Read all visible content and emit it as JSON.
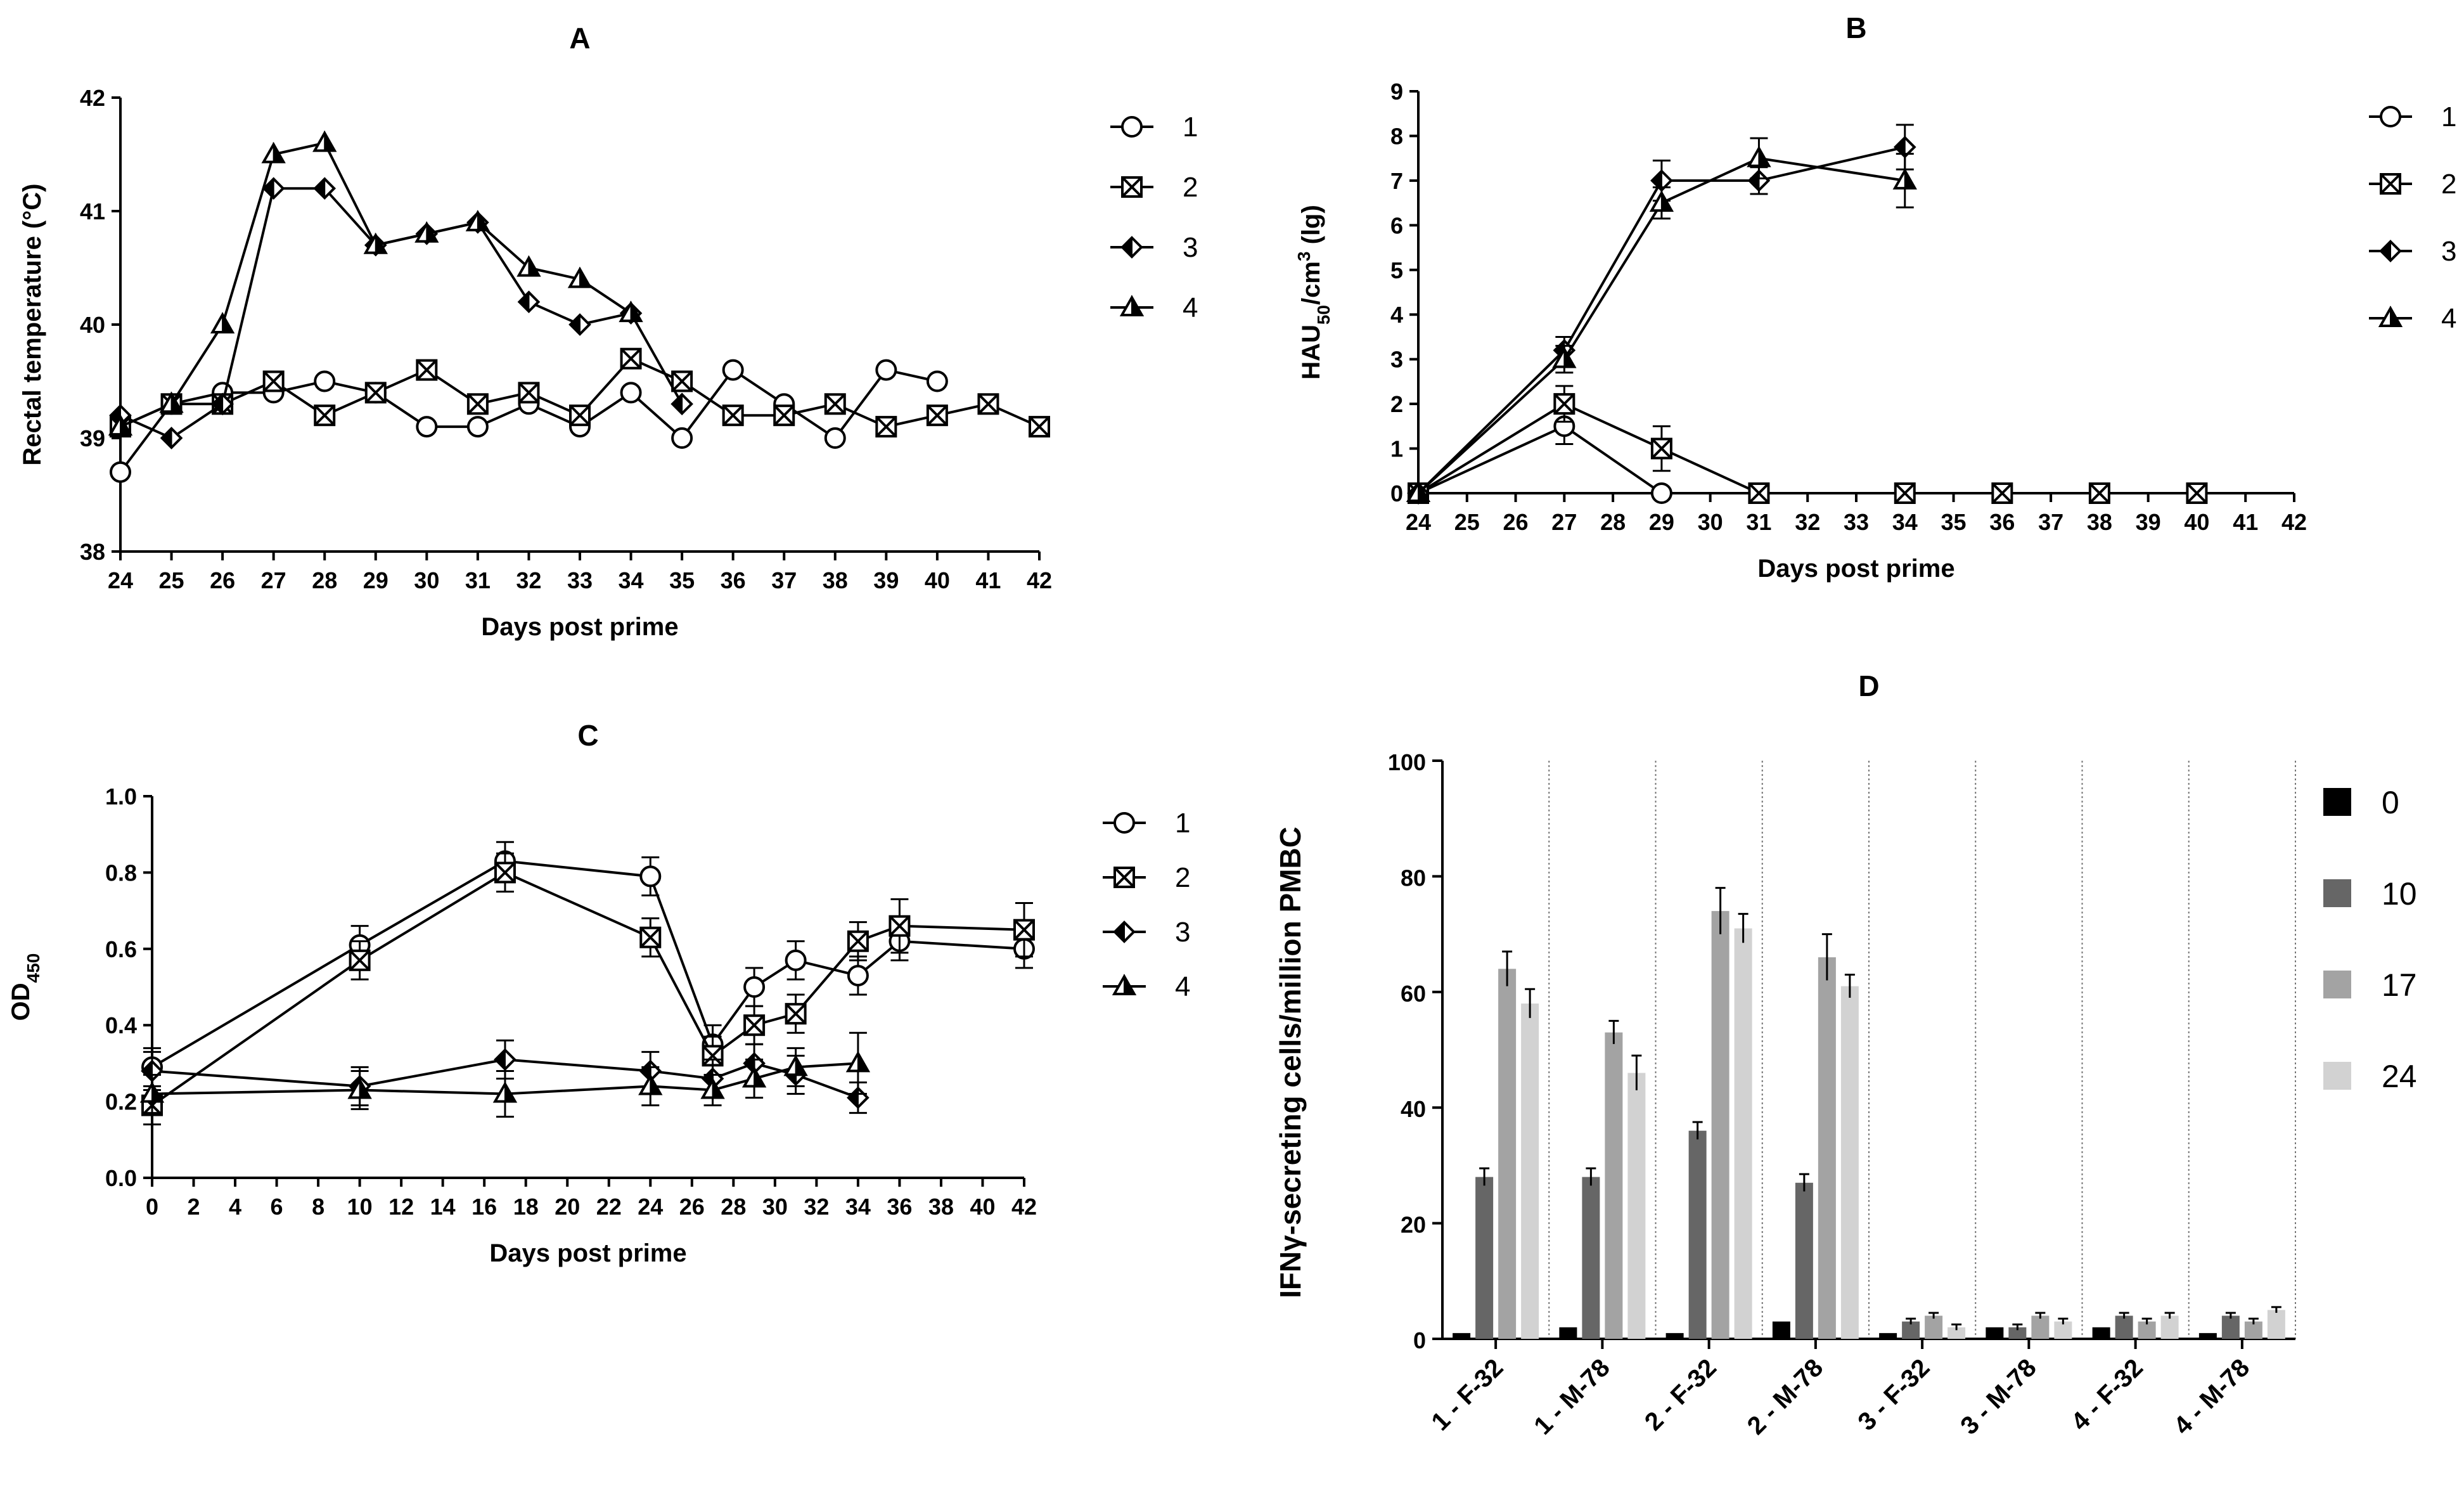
{
  "chart_data": [
    {
      "panel": "A",
      "type": "line",
      "title": "A",
      "xlabel": "Days post prime",
      "ylabel": "Rectal temperature (°C)",
      "xlim": [
        24,
        42
      ],
      "ylim": [
        38,
        42
      ],
      "xticks": [
        24,
        25,
        26,
        27,
        28,
        29,
        30,
        31,
        32,
        33,
        34,
        35,
        36,
        37,
        38,
        39,
        40,
        41,
        42
      ],
      "yticks": [
        38,
        39,
        40,
        41,
        42
      ],
      "series": [
        {
          "name": "1",
          "marker": "circle",
          "x": [
            24,
            25,
            26,
            27,
            28,
            29,
            30,
            31,
            32,
            33,
            34,
            35,
            36,
            37,
            38,
            39,
            40
          ],
          "y": [
            38.7,
            39.3,
            39.4,
            39.4,
            39.5,
            39.4,
            39.1,
            39.1,
            39.3,
            39.1,
            39.4,
            39.0,
            39.6,
            39.3,
            39.0,
            39.6,
            39.5
          ]
        },
        {
          "name": "2",
          "marker": "square-x",
          "x": [
            24,
            25,
            26,
            27,
            28,
            29,
            30,
            31,
            32,
            33,
            34,
            35,
            36,
            37,
            38,
            39,
            40,
            41,
            42
          ],
          "y": [
            39.1,
            39.3,
            39.3,
            39.5,
            39.2,
            39.4,
            39.6,
            39.3,
            39.4,
            39.2,
            39.7,
            39.5,
            39.2,
            39.2,
            39.3,
            39.1,
            39.2,
            39.3,
            39.1
          ]
        },
        {
          "name": "3",
          "marker": "diamond",
          "x": [
            24,
            25,
            26,
            27,
            28,
            29,
            30,
            31,
            32,
            33,
            34,
            35
          ],
          "y": [
            39.2,
            39.0,
            39.3,
            41.2,
            41.2,
            40.7,
            40.8,
            40.9,
            40.2,
            40.0,
            40.1,
            39.3
          ]
        },
        {
          "name": "4",
          "marker": "triangle",
          "x": [
            24,
            25,
            26,
            27,
            28,
            29,
            30,
            31,
            32,
            33,
            34
          ],
          "y": [
            39.1,
            39.3,
            40.0,
            41.5,
            41.6,
            40.7,
            40.8,
            40.9,
            40.5,
            40.4,
            40.1
          ]
        }
      ],
      "legend": [
        "1",
        "2",
        "3",
        "4"
      ]
    },
    {
      "panel": "B",
      "type": "line",
      "title": "B",
      "xlabel": "Days post prime",
      "ylabel_main": "HAU",
      "ylabel_sub": "50",
      "ylabel_mid": "/cm",
      "ylabel_sup": "3",
      "ylabel_end": " (lg)",
      "xlim": [
        24,
        42
      ],
      "ylim": [
        0,
        9
      ],
      "xticks": [
        24,
        25,
        26,
        27,
        28,
        29,
        30,
        31,
        32,
        33,
        34,
        35,
        36,
        37,
        38,
        39,
        40,
        41,
        42
      ],
      "yticks": [
        0,
        1,
        2,
        3,
        4,
        5,
        6,
        7,
        8,
        9
      ],
      "series": [
        {
          "name": "1",
          "marker": "circle",
          "x": [
            24,
            27,
            29
          ],
          "y": [
            0,
            1.5,
            0
          ],
          "err": [
            0,
            0.4,
            0
          ]
        },
        {
          "name": "2",
          "marker": "square-x",
          "x": [
            24,
            27,
            29,
            31,
            34,
            36,
            38,
            40
          ],
          "y": [
            0,
            2.0,
            1.0,
            0,
            0,
            0,
            0,
            0
          ],
          "err": [
            0,
            0.4,
            0.5,
            0,
            0,
            0,
            0,
            0
          ]
        },
        {
          "name": "3",
          "marker": "diamond",
          "x": [
            24,
            27,
            29,
            31,
            34
          ],
          "y": [
            0,
            3.2,
            7.0,
            7.0,
            7.75
          ],
          "err": [
            0,
            0.3,
            0.45,
            0.3,
            0.5
          ]
        },
        {
          "name": "4",
          "marker": "triangle",
          "x": [
            24,
            27,
            29,
            31,
            34
          ],
          "y": [
            0,
            3.0,
            6.5,
            7.5,
            7.0
          ],
          "err": [
            0,
            0.3,
            0.35,
            0.45,
            0.6
          ]
        }
      ],
      "legend": [
        "1",
        "2",
        "3",
        "4"
      ]
    },
    {
      "panel": "C",
      "type": "line",
      "title": "C",
      "xlabel": "Days post prime",
      "ylabel_main": "OD",
      "ylabel_sub": "450",
      "xlim": [
        0,
        42
      ],
      "ylim": [
        0,
        1.0
      ],
      "xticks": [
        0,
        2,
        4,
        6,
        8,
        10,
        12,
        14,
        16,
        18,
        20,
        22,
        24,
        26,
        28,
        30,
        32,
        34,
        36,
        38,
        40,
        42
      ],
      "yticks": [
        0.0,
        0.2,
        0.4,
        0.6,
        0.8,
        1.0
      ],
      "ytick_labels": [
        "0.0",
        "0.2",
        "0.4",
        "0.6",
        "0.8",
        "1.0"
      ],
      "series": [
        {
          "name": "1",
          "marker": "circle",
          "x": [
            0,
            10,
            17,
            24,
            27,
            29,
            31,
            34,
            36,
            42
          ],
          "y": [
            0.29,
            0.61,
            0.83,
            0.79,
            0.35,
            0.5,
            0.57,
            0.53,
            0.62,
            0.6
          ],
          "err": [
            0.05,
            0.05,
            0.05,
            0.05,
            0.05,
            0.05,
            0.05,
            0.05,
            0.05,
            0.05
          ]
        },
        {
          "name": "2",
          "marker": "square-x",
          "x": [
            0,
            10,
            17,
            24,
            27,
            29,
            31,
            34,
            36,
            42
          ],
          "y": [
            0.19,
            0.57,
            0.8,
            0.63,
            0.32,
            0.4,
            0.43,
            0.62,
            0.66,
            0.65
          ],
          "err": [
            0.05,
            0.05,
            0.05,
            0.05,
            0.05,
            0.05,
            0.05,
            0.05,
            0.07,
            0.07
          ]
        },
        {
          "name": "3",
          "marker": "diamond",
          "x": [
            0,
            10,
            17,
            24,
            27,
            29,
            31,
            34
          ],
          "y": [
            0.28,
            0.24,
            0.31,
            0.28,
            0.26,
            0.3,
            0.27,
            0.21
          ],
          "err": [
            0.05,
            0.05,
            0.05,
            0.05,
            0.05,
            0.05,
            0.05,
            0.04
          ]
        },
        {
          "name": "4",
          "marker": "triangle",
          "x": [
            0,
            10,
            17,
            24,
            27,
            29,
            31,
            34
          ],
          "y": [
            0.22,
            0.23,
            0.22,
            0.24,
            0.23,
            0.26,
            0.29,
            0.3
          ],
          "err": [
            0.05,
            0.05,
            0.06,
            0.05,
            0.04,
            0.05,
            0.05,
            0.08
          ]
        }
      ],
      "legend": [
        "1",
        "2",
        "3",
        "4"
      ]
    },
    {
      "panel": "D",
      "type": "bar",
      "title": "D",
      "ylabel": "IFNγ-secreting cells/million PMBC",
      "ylim": [
        0,
        100
      ],
      "yticks": [
        0,
        20,
        40,
        60,
        80,
        100
      ],
      "categories": [
        "1 - F-32",
        "1 - M-78",
        "2 - F-32",
        "2 - M-78",
        "3 - F-32",
        "3 - M-78",
        "4 - F-32",
        "4 - M-78"
      ],
      "series": [
        {
          "name": "0",
          "color": "#000000",
          "values": [
            1,
            2,
            1,
            3,
            1,
            2,
            2,
            1
          ],
          "err": [
            0,
            0,
            0,
            0,
            0,
            0,
            0,
            0
          ]
        },
        {
          "name": "10",
          "color": "#666666",
          "values": [
            28,
            28,
            36,
            27,
            3,
            2,
            4,
            4
          ],
          "err": [
            1.5,
            1.5,
            1.5,
            1.5,
            0.5,
            0.5,
            0.5,
            0.5
          ]
        },
        {
          "name": "17",
          "color": "#a3a3a3",
          "values": [
            64,
            53,
            74,
            66,
            4,
            4,
            3,
            3
          ],
          "err": [
            3,
            2,
            4,
            4,
            0.5,
            0.5,
            0.5,
            0.5
          ]
        },
        {
          "name": "24",
          "color": "#d2d2d2",
          "values": [
            58,
            46,
            71,
            61,
            2,
            3,
            4,
            5
          ],
          "err": [
            2.5,
            3,
            2.5,
            2,
            0.5,
            0.5,
            0.5,
            0.5
          ]
        }
      ],
      "legend": [
        "0",
        "10",
        "17",
        "24"
      ]
    }
  ]
}
